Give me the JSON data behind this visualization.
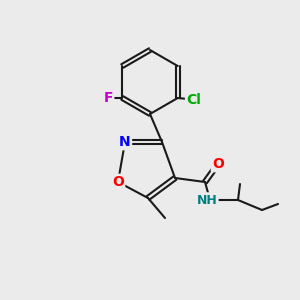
{
  "bg_color": "#ebebeb",
  "bond_color": "#1a1a1a",
  "bond_width": 1.5,
  "atom_colors": {
    "O": "#ff0000",
    "N": "#0000ff",
    "F": "#cc00cc",
    "Cl": "#00aa00",
    "H_amide": "#008080",
    "C": "#1a1a1a"
  },
  "font_size": 9,
  "font_size_small": 8
}
